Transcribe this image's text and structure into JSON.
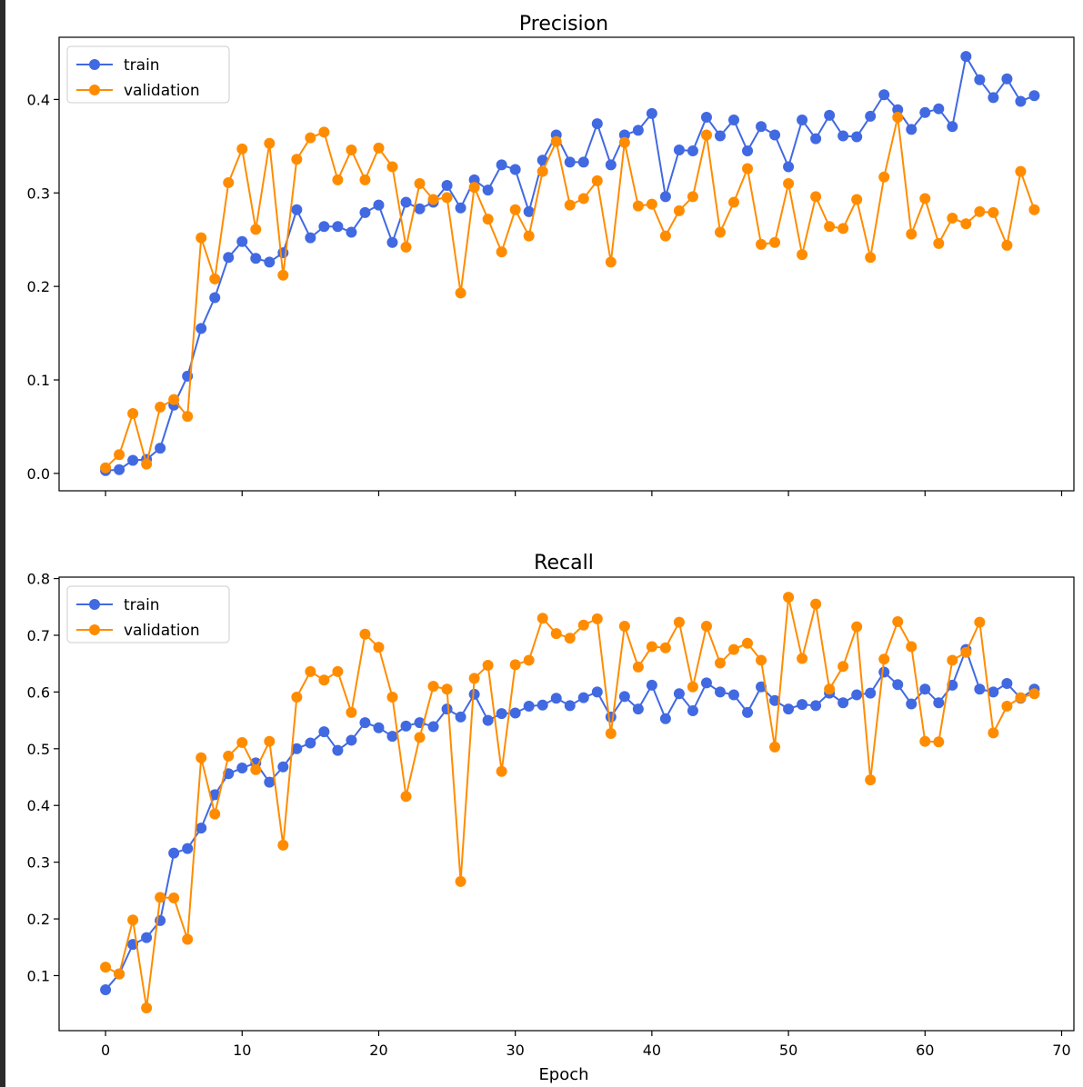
{
  "chart_data": [
    {
      "type": "line",
      "title": "Precision",
      "xlabel": "",
      "ylabel": "",
      "xlim": [
        -3.4,
        70.9
      ],
      "ylim": [
        -0.0186,
        0.4665
      ],
      "xticks": [
        0,
        10,
        20,
        30,
        40,
        50,
        60,
        70
      ],
      "yticks": [
        0.0,
        0.1,
        0.2,
        0.3,
        0.4
      ],
      "yticklabels": [
        "0.0",
        "0.1",
        "0.2",
        "0.3",
        "0.4"
      ],
      "show_xticklabels": false,
      "grid": false,
      "legend": "top-left",
      "series": [
        {
          "name": "train",
          "color": "#4169e1",
          "values": [
            0.003,
            0.004,
            0.014,
            0.015,
            0.027,
            0.073,
            0.104,
            0.155,
            0.188,
            0.231,
            0.248,
            0.23,
            0.226,
            0.236,
            0.282,
            0.252,
            0.264,
            0.264,
            0.258,
            0.279,
            0.287,
            0.247,
            0.29,
            0.283,
            0.29,
            0.308,
            0.284,
            0.314,
            0.303,
            0.33,
            0.325,
            0.28,
            0.335,
            0.362,
            0.333,
            0.333,
            0.374,
            0.33,
            0.362,
            0.367,
            0.385,
            0.296,
            0.346,
            0.345,
            0.381,
            0.361,
            0.378,
            0.345,
            0.371,
            0.362,
            0.328,
            0.378,
            0.358,
            0.383,
            0.361,
            0.36,
            0.382,
            0.405,
            0.389,
            0.368,
            0.386,
            0.39,
            0.371,
            0.446,
            0.421,
            0.402,
            0.422,
            0.398,
            0.404
          ]
        },
        {
          "name": "validation",
          "color": "#ff8c00",
          "values": [
            0.006,
            0.02,
            0.064,
            0.01,
            0.071,
            0.079,
            0.061,
            0.252,
            0.208,
            0.311,
            0.347,
            0.261,
            0.353,
            0.212,
            0.336,
            0.359,
            0.365,
            0.314,
            0.346,
            0.314,
            0.348,
            0.328,
            0.242,
            0.31,
            0.293,
            0.295,
            0.193,
            0.306,
            0.272,
            0.237,
            0.282,
            0.254,
            0.323,
            0.355,
            0.287,
            0.294,
            0.313,
            0.226,
            0.354,
            0.286,
            0.288,
            0.254,
            0.281,
            0.296,
            0.362,
            0.258,
            0.29,
            0.326,
            0.245,
            0.247,
            0.31,
            0.234,
            0.296,
            0.264,
            0.262,
            0.293,
            0.231,
            0.317,
            0.381,
            0.256,
            0.294,
            0.246,
            0.273,
            0.267,
            0.28,
            0.279,
            0.244,
            0.323,
            0.282
          ]
        }
      ]
    },
    {
      "type": "line",
      "title": "Recall",
      "xlabel": "Epoch",
      "ylabel": "",
      "xlim": [
        -3.4,
        70.9
      ],
      "ylim": [
        0.003,
        0.8025
      ],
      "xticks": [
        0,
        10,
        20,
        30,
        40,
        50,
        60,
        70
      ],
      "yticks": [
        0.1,
        0.2,
        0.3,
        0.4,
        0.5,
        0.6,
        0.7,
        0.8
      ],
      "yticklabels": [
        "0.1",
        "0.2",
        "0.3",
        "0.4",
        "0.5",
        "0.6",
        "0.7",
        "0.8"
      ],
      "show_xticklabels": true,
      "grid": false,
      "legend": "top-left",
      "series": [
        {
          "name": "train",
          "color": "#4169e1",
          "values": [
            0.075,
            0.103,
            0.155,
            0.167,
            0.197,
            0.316,
            0.324,
            0.36,
            0.419,
            0.456,
            0.466,
            0.475,
            0.441,
            0.468,
            0.5,
            0.51,
            0.53,
            0.497,
            0.515,
            0.546,
            0.537,
            0.522,
            0.54,
            0.546,
            0.539,
            0.57,
            0.556,
            0.596,
            0.55,
            0.562,
            0.563,
            0.575,
            0.577,
            0.589,
            0.576,
            0.59,
            0.6,
            0.556,
            0.592,
            0.57,
            0.612,
            0.553,
            0.597,
            0.567,
            0.616,
            0.6,
            0.595,
            0.564,
            0.609,
            0.585,
            0.57,
            0.578,
            0.576,
            0.598,
            0.581,
            0.595,
            0.598,
            0.635,
            0.613,
            0.579,
            0.605,
            0.581,
            0.612,
            0.675,
            0.605,
            0.6,
            0.615,
            0.589,
            0.605
          ]
        },
        {
          "name": "validation",
          "color": "#ff8c00",
          "values": [
            0.115,
            0.103,
            0.198,
            0.043,
            0.238,
            0.237,
            0.164,
            0.484,
            0.385,
            0.487,
            0.511,
            0.463,
            0.513,
            0.33,
            0.591,
            0.636,
            0.621,
            0.636,
            0.564,
            0.702,
            0.679,
            0.591,
            0.416,
            0.52,
            0.61,
            0.605,
            0.266,
            0.624,
            0.647,
            0.46,
            0.648,
            0.656,
            0.73,
            0.703,
            0.695,
            0.718,
            0.729,
            0.527,
            0.716,
            0.644,
            0.68,
            0.678,
            0.723,
            0.609,
            0.716,
            0.651,
            0.675,
            0.686,
            0.656,
            0.503,
            0.767,
            0.659,
            0.755,
            0.605,
            0.645,
            0.715,
            0.445,
            0.658,
            0.724,
            0.68,
            0.513,
            0.512,
            0.656,
            0.67,
            0.723,
            0.528,
            0.575,
            0.59,
            0.597
          ]
        }
      ]
    }
  ]
}
